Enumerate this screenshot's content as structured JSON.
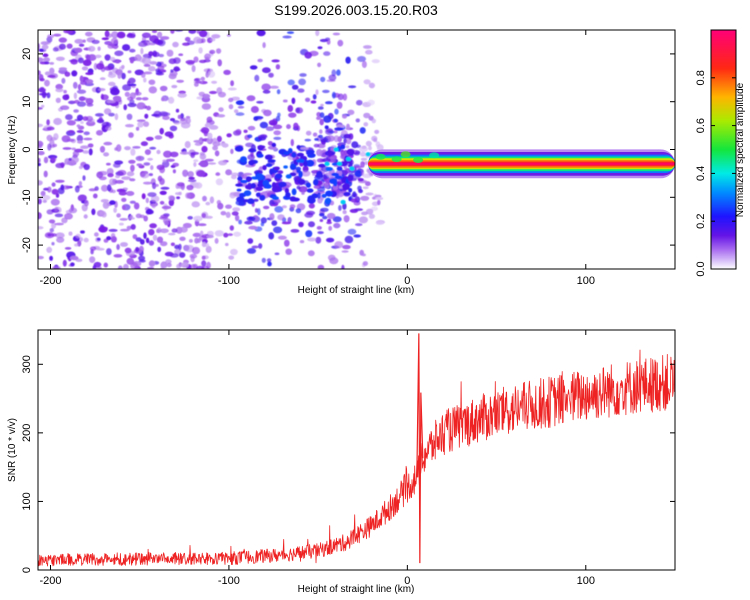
{
  "title": "S199.2026.003.15.20.R03",
  "colors": {
    "snr_line": "#ee2222",
    "axis": "#000000"
  },
  "chart_data": [
    {
      "type": "heatmap",
      "name": "spectrogram",
      "xlabel": "Height of straight line (km)",
      "ylabel": "Frequency (Hz)",
      "xlim": [
        -207,
        150
      ],
      "ylim": [
        -25,
        25
      ],
      "x_ticks": [
        -200,
        -100,
        0,
        100
      ],
      "x_tick_labels": [
        "-200",
        "-100",
        "0",
        "100"
      ],
      "y_ticks": [
        -20,
        -10,
        0,
        10,
        20
      ],
      "y_tick_labels": [
        "-20",
        "-10",
        "0",
        "10",
        "20"
      ],
      "tone_frequency_hz": -3,
      "tone_start_km": -22,
      "colorbar": {
        "label": "Normalized spectral amplitude",
        "range": [
          0,
          1
        ],
        "ticks": [
          0.0,
          0.2,
          0.4,
          0.6,
          0.8
        ],
        "tick_labels": [
          "0.0",
          "0.2",
          "0.4",
          "0.6",
          "0.8"
        ],
        "colormap": "purple-blue-cyan-green-yellow-orange-red-magenta"
      }
    },
    {
      "type": "line",
      "name": "snr",
      "xlabel": "Height of straight line (km)",
      "ylabel": "SNR (10 * v/v)",
      "xlim": [
        -207,
        150
      ],
      "ylim": [
        0,
        350
      ],
      "x_ticks": [
        -200,
        -100,
        0,
        100
      ],
      "x_tick_labels": [
        "-200",
        "-100",
        "0",
        "100"
      ],
      "y_ticks": [
        0,
        100,
        200,
        300
      ],
      "y_tick_labels": [
        "0",
        "100",
        "200",
        "300"
      ],
      "trend_x": [
        -207,
        -150,
        -100,
        -70,
        -50,
        -35,
        -20,
        -10,
        -5,
        0,
        5,
        10,
        20,
        30,
        40,
        60,
        80,
        100,
        120,
        150
      ],
      "trend_y": [
        15,
        16,
        17,
        22,
        28,
        40,
        65,
        90,
        105,
        120,
        135,
        170,
        200,
        210,
        220,
        235,
        245,
        255,
        265,
        275
      ],
      "noise_amplitude": 15,
      "spike": {
        "x": 7,
        "peak": 345,
        "low": 10
      }
    }
  ]
}
